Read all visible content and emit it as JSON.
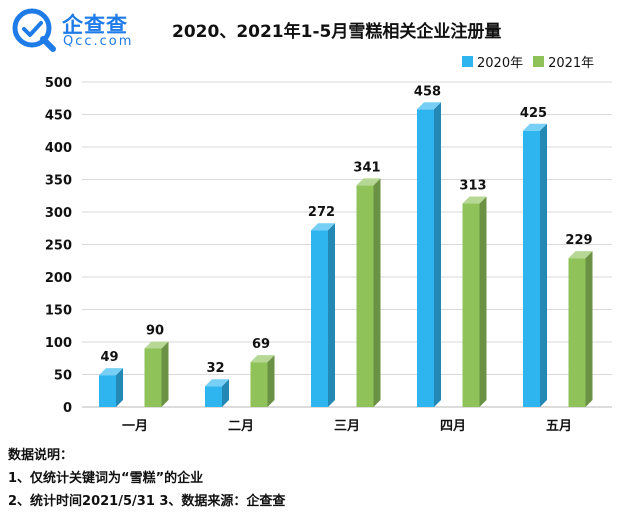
{
  "brand": {
    "name_cn": "企查查",
    "name_en": "Qcc.com",
    "color": "#1f7be8"
  },
  "chart_data": {
    "type": "bar",
    "title": "2020、2021年1-5月雪糕相关企业注册量",
    "categories": [
      "一月",
      "二月",
      "三月",
      "四月",
      "五月"
    ],
    "series": [
      {
        "name": "2020年",
        "values": [
          49,
          32,
          272,
          458,
          425
        ],
        "color": "#2eb5ef"
      },
      {
        "name": "2021年",
        "values": [
          90,
          69,
          341,
          313,
          229
        ],
        "color": "#8fc35a"
      }
    ],
    "yticks": [
      0,
      50,
      100,
      150,
      200,
      250,
      300,
      350,
      400,
      450,
      500
    ],
    "ylim": [
      0,
      500
    ],
    "legend": "top-right",
    "grid": true
  },
  "notes": {
    "heading": "数据说明：",
    "line1": "1、仅统计关键词为“雪糕”的企业",
    "line2": "2、统计时间2021/5/31    3、数据来源：企查查"
  }
}
